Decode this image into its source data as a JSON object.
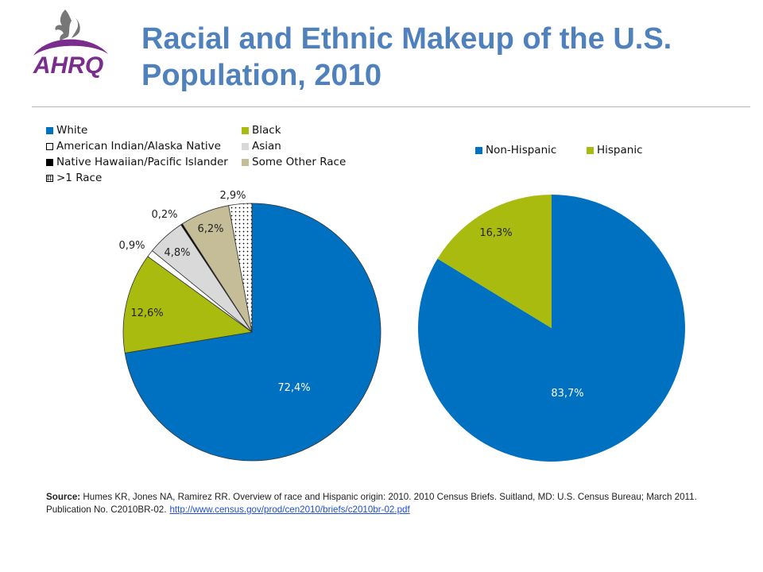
{
  "logo": {
    "text": "AHRQ"
  },
  "title": "Racial and Ethnic Makeup of the U.S. Population, 2010",
  "source": {
    "label": "Source:",
    "text": "Humes KR, Jones NA, Ramirez RR. Overview of race and Hispanic origin: 2010. 2010 Census Briefs. Suitland, MD: U.S. Census Bureau; March 2011. Publication No. C2010BR-02.",
    "link": "http://www.census.gov/prod/cen2010/briefs/c2010br-02.pdf"
  },
  "chart_data": [
    {
      "type": "pie",
      "title": "",
      "legend_placement": "top",
      "categories": [
        "White",
        "Black",
        "American Indian/Alaska Native",
        "Asian",
        "Native Hawaiian/Pacific  Islander",
        "Some Other Race",
        ">1 Race"
      ],
      "values": [
        72.4,
        12.6,
        0.9,
        4.8,
        0.2,
        6.2,
        2.9
      ],
      "data_labels": [
        "72,4%",
        "12,6%",
        "0,9%",
        "4,8%",
        "0,2%",
        "6,2%",
        "2,9%"
      ],
      "colors": [
        "#0070c0",
        "#a9bb0e",
        "#ffffff",
        "#d9d9d9",
        "#000000",
        "#c4bd97",
        "dotted"
      ]
    },
    {
      "type": "pie",
      "title": "",
      "legend_placement": "top",
      "categories": [
        "Non-Hispanic",
        "Hispanic"
      ],
      "values": [
        83.7,
        16.3
      ],
      "data_labels": [
        "83,7%",
        "16,3%"
      ],
      "colors": [
        "#0070c0",
        "#a9bb0e"
      ]
    }
  ]
}
